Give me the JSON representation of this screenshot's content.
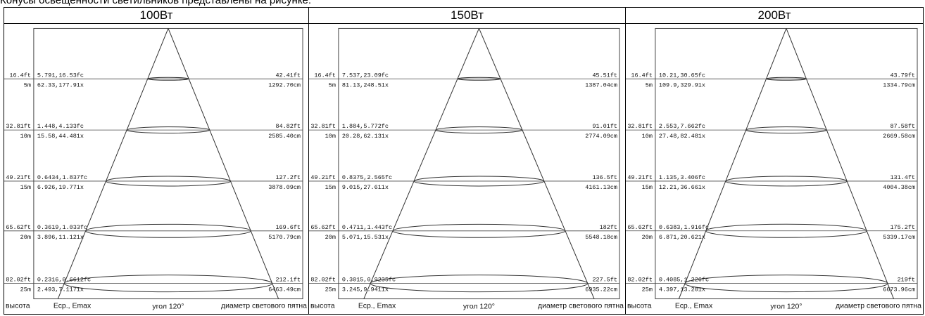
{
  "caption": "Конусы освещенности светильников представлены на рисунке:",
  "footer": {
    "height": "высота",
    "illum": "Есp., Emax",
    "angle": "угол 120°",
    "diameter": "диаметр светового пятна"
  },
  "panels": [
    {
      "title": "100Вт",
      "rows": [
        {
          "ft": "16.4ft",
          "m": "5m",
          "fc": "5.791,16.53fc",
          "lx": "62.33,177.91x",
          "dft": "42.41ft",
          "dcm": "1292.70cm"
        },
        {
          "ft": "32.81ft",
          "m": "10m",
          "fc": "1.448,4.133fc",
          "lx": "15.58,44.481x",
          "dft": "84.82ft",
          "dcm": "2585.40cm"
        },
        {
          "ft": "49.21ft",
          "m": "15m",
          "fc": "0.6434,1.837fc",
          "lx": "6.926,19.771x",
          "dft": "127.2ft",
          "dcm": "3878.09cm"
        },
        {
          "ft": "65.62ft",
          "m": "20m",
          "fc": "0.3619,1.033fc",
          "lx": "3.896,11.121x",
          "dft": "169.6ft",
          "dcm": "5170.79cm"
        },
        {
          "ft": "82.02ft",
          "m": "25m",
          "fc": "0.2316,0.6612fc",
          "lx": "2.493,7.1171x",
          "dft": "212.1ft",
          "dcm": "6463.49cm"
        }
      ]
    },
    {
      "title": "150Вт",
      "rows": [
        {
          "ft": "16.4ft",
          "m": "5m",
          "fc": "7.537,23.09fc",
          "lx": "81.13,248.51x",
          "dft": "45.51ft",
          "dcm": "1387.04cm"
        },
        {
          "ft": "32.81ft",
          "m": "10m",
          "fc": "1.884,5.772fc",
          "lx": "20.28,62.131x",
          "dft": "91.01ft",
          "dcm": "2774.09cm"
        },
        {
          "ft": "49.21ft",
          "m": "15m",
          "fc": "0.8375,2.565fc",
          "lx": "9.015,27.611x",
          "dft": "136.5ft",
          "dcm": "4161.13cm"
        },
        {
          "ft": "65.62ft",
          "m": "20m",
          "fc": "0.4711,1.443fc",
          "lx": "5.071,15.531x",
          "dft": "182ft",
          "dcm": "5548.18cm"
        },
        {
          "ft": "82.02ft",
          "m": "25m",
          "fc": "0.3015,0.9235fc",
          "lx": "3.245,9.9411x",
          "dft": "227.5ft",
          "dcm": "6935.22cm"
        }
      ]
    },
    {
      "title": "200Вт",
      "rows": [
        {
          "ft": "16.4ft",
          "m": "5m",
          "fc": "10.21,30.65fc",
          "lx": "109.9,329.91x",
          "dft": "43.79ft",
          "dcm": "1334.79cm"
        },
        {
          "ft": "32.81ft",
          "m": "10m",
          "fc": "2.553,7.662fc",
          "lx": "27.48,82.481x",
          "dft": "87.58ft",
          "dcm": "2669.58cm"
        },
        {
          "ft": "49.21ft",
          "m": "15m",
          "fc": "1.135,3.406fc",
          "lx": "12.21,36.661x",
          "dft": "131.4ft",
          "dcm": "4004.38cm"
        },
        {
          "ft": "65.62ft",
          "m": "20m",
          "fc": "0.6383,1.916fc",
          "lx": "6.871,20.621x",
          "dft": "175.2ft",
          "dcm": "5339.17cm"
        },
        {
          "ft": "82.02ft",
          "m": "25m",
          "fc": "0.4085,1.226fc",
          "lx": "4.397,13.201x",
          "dft": "219ft",
          "dcm": "6673.96cm"
        }
      ]
    }
  ]
}
